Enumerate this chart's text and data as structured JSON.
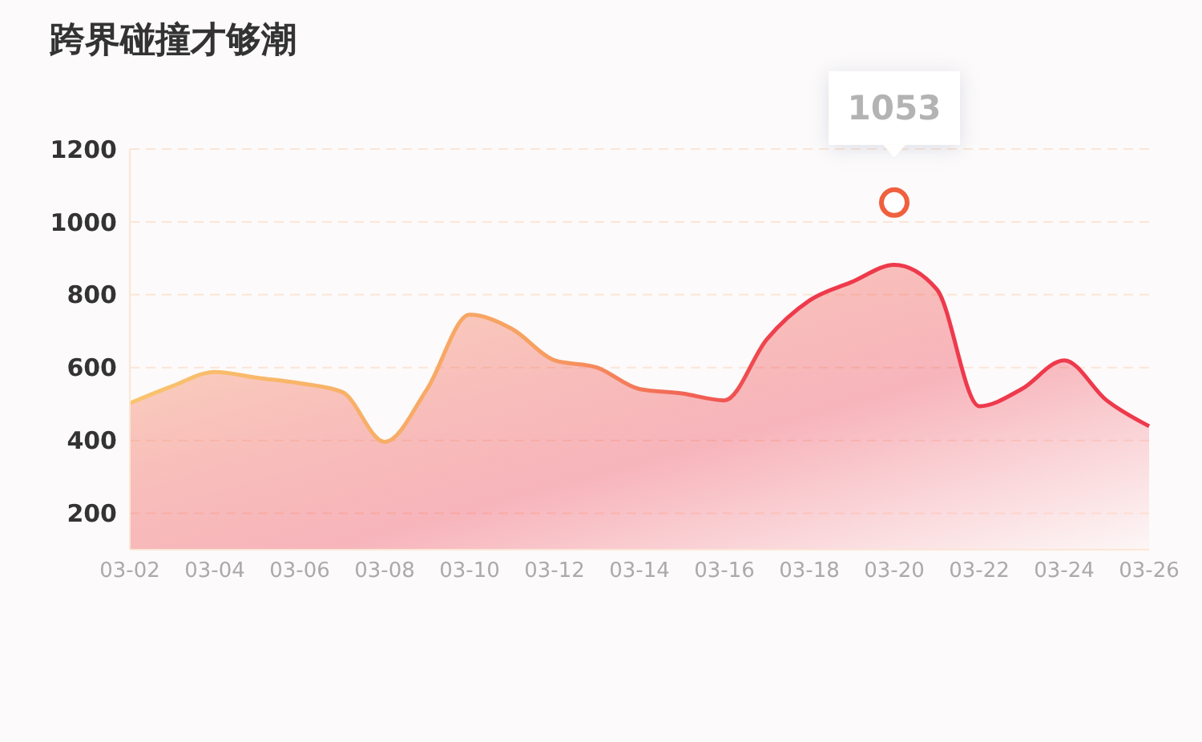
{
  "chart_data": {
    "type": "area",
    "title": "跨界碰撞才够潮",
    "categories": [
      "03-02",
      null,
      "03-04",
      null,
      "03-06",
      null,
      "03-08",
      null,
      "03-10",
      null,
      "03-12",
      null,
      "03-14",
      null,
      "03-16",
      null,
      "03-18",
      null,
      "03-20",
      null,
      "03-22",
      null,
      "03-24",
      null,
      "03-26"
    ],
    "series": [
      {
        "color": "#ee3a4c",
        "values": [
          502,
          549,
          588,
          572,
          557,
          533,
          396,
          541,
          745,
          706,
          620,
          600,
          541,
          529,
          510,
          678,
          784,
          835,
          882,
          815,
          494,
          541,
          620,
          510,
          439
        ]
      }
    ],
    "ylim": [
      100,
      1200
    ],
    "yticks": [
      200,
      400,
      600,
      800,
      1000,
      1200
    ],
    "grid": "y",
    "annotations": [
      {
        "text": "1053",
        "x": "03-20",
        "y": 1053
      }
    ]
  }
}
